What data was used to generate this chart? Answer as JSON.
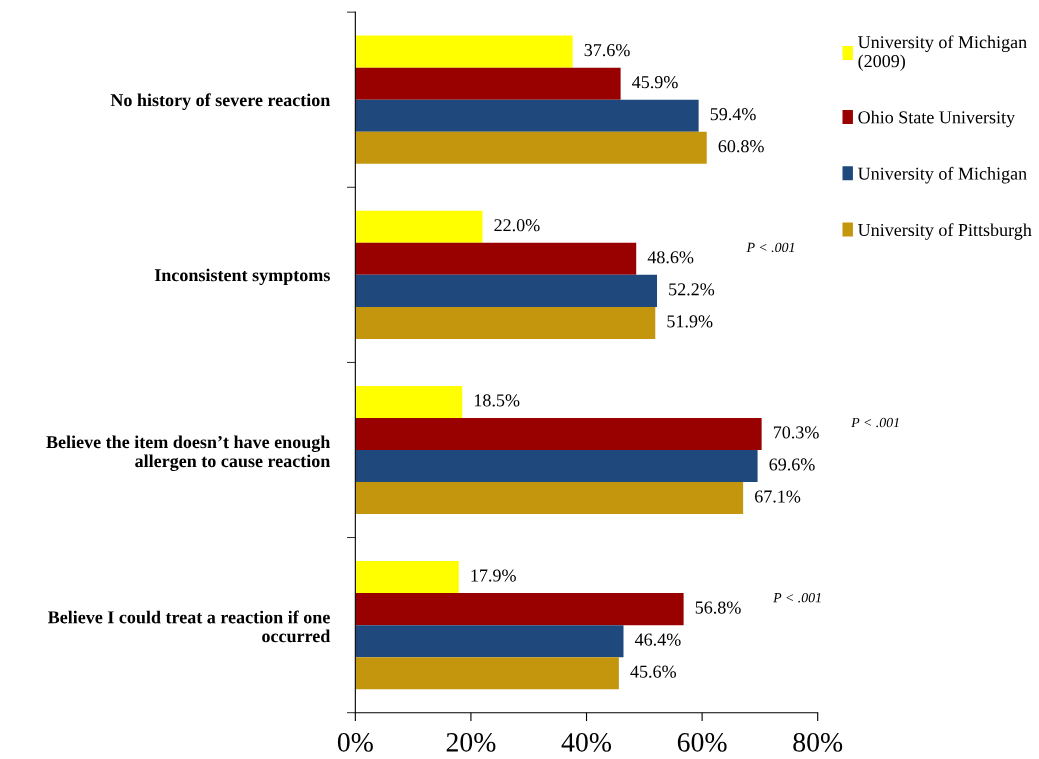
{
  "chart_data": {
    "type": "bar",
    "orientation": "horizontal",
    "categories": [
      "No history of severe reaction",
      "Inconsistent symptoms",
      "Believe the item doesn’t have enough\nallergen to cause reaction",
      "Believe I could treat a reaction if one\noccurred"
    ],
    "series": [
      {
        "name": "University of Michigan\n(2009)",
        "color": "#ffff00",
        "values": [
          37.6,
          22.0,
          18.5,
          17.9
        ],
        "value_labels": [
          "37.6%",
          "22.0%",
          "18.5%",
          "17.9%"
        ]
      },
      {
        "name": "Ohio State University",
        "color": "#990000",
        "values": [
          45.9,
          48.6,
          70.3,
          56.8
        ],
        "value_labels": [
          "45.9%",
          "48.6%",
          "70.3%",
          "56.8%"
        ]
      },
      {
        "name": "University of Michigan",
        "color": "#1f497d",
        "values": [
          59.4,
          52.2,
          69.6,
          46.4
        ],
        "value_labels": [
          "59.4%",
          "52.2%",
          "69.6%",
          "46.4%"
        ]
      },
      {
        "name": "University of Pittsburgh",
        "color": "#c4960e",
        "values": [
          60.8,
          51.9,
          67.1,
          45.6
        ],
        "value_labels": [
          "60.8%",
          "51.9%",
          "67.1%",
          "45.6%"
        ]
      }
    ],
    "xlim": [
      0,
      80
    ],
    "xticks": [
      {
        "value": 0,
        "label": "0%"
      },
      {
        "value": 20,
        "label": "20%"
      },
      {
        "value": 40,
        "label": "40%"
      },
      {
        "value": 60,
        "label": "60%"
      },
      {
        "value": 80,
        "label": "80%"
      }
    ],
    "annotations": [
      "P < .001",
      "P < .001",
      "P < .001"
    ],
    "legend": "right",
    "grid": false
  }
}
